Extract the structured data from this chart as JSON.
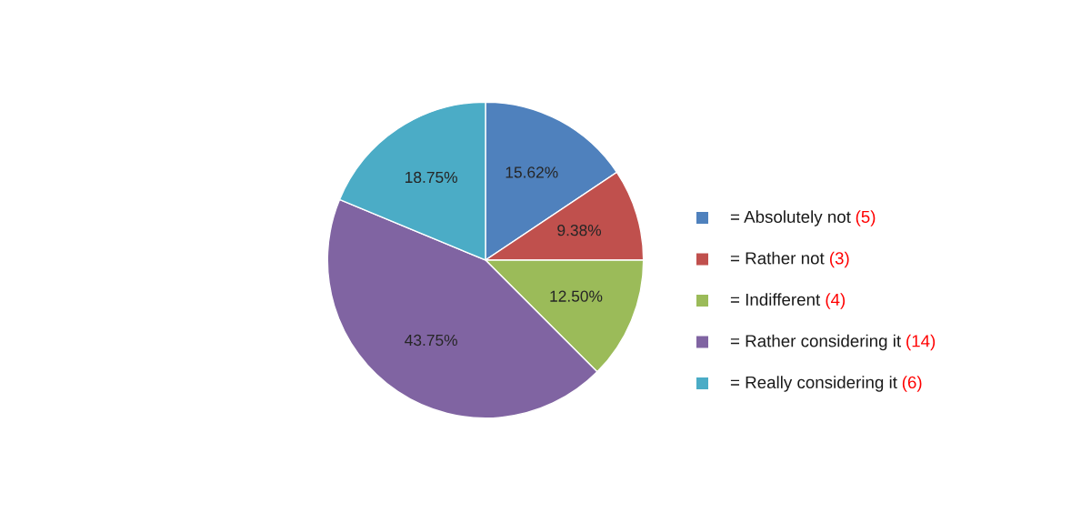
{
  "chart_data": {
    "type": "pie",
    "categories": [
      "= Absolutely not (5)",
      "= Rather not (3)",
      "= Indifferent (4)",
      "= Rather considering it (14)",
      "= Really considering it (6)"
    ],
    "values": [
      15.62,
      9.38,
      12.5,
      43.75,
      18.75
    ],
    "value_labels": [
      "15.62%",
      "9.38%",
      "12.50%",
      "43.75%",
      "18.75%"
    ],
    "colors": [
      "#4f81bd",
      "#c0504d",
      "#9bbb59",
      "#8064a2",
      "#4bacc6"
    ],
    "legend": "right"
  }
}
